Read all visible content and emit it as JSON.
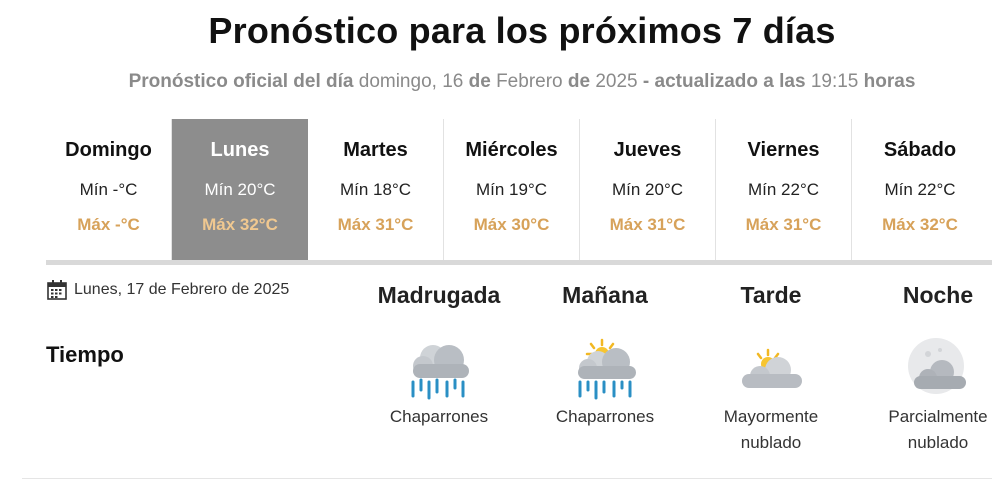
{
  "header": {
    "title": "Pronóstico para los próximos 7 días",
    "subtitle": {
      "prefix": "Pronóstico oficial del día",
      "weekday_day": "domingo, 16",
      "de1": "de",
      "month": "Febrero",
      "de2": "de",
      "year": "2025",
      "updated_label": "- actualizado a las",
      "time": "19:15",
      "hours_label": "horas"
    }
  },
  "days": [
    {
      "name": "Domingo",
      "min": "Mín -°C",
      "max": "Máx -°C",
      "active": false
    },
    {
      "name": "Lunes",
      "min": "Mín 20°C",
      "max": "Máx 32°C",
      "active": true
    },
    {
      "name": "Martes",
      "min": "Mín 18°C",
      "max": "Máx 31°C",
      "active": false
    },
    {
      "name": "Miércoles",
      "min": "Mín 19°C",
      "max": "Máx 30°C",
      "active": false
    },
    {
      "name": "Jueves",
      "min": "Mín 20°C",
      "max": "Máx 31°C",
      "active": false
    },
    {
      "name": "Viernes",
      "min": "Mín 22°C",
      "max": "Máx 31°C",
      "active": false
    },
    {
      "name": "Sábado",
      "min": "Mín 22°C",
      "max": "Máx 32°C",
      "active": false
    }
  ],
  "detail": {
    "date": "Lunes, 17 de Febrero de 2025",
    "date_icon": "calendar-icon",
    "section_label": "Tiempo",
    "periods": [
      {
        "name": "Madrugada",
        "desc_line1": "Chaparrones",
        "desc_line2": "",
        "icon": "rain-cloud-icon"
      },
      {
        "name": "Mañana",
        "desc_line1": "Chaparrones",
        "desc_line2": "",
        "icon": "sun-rain-cloud-icon"
      },
      {
        "name": "Tarde",
        "desc_line1": "Mayormente",
        "desc_line2": "nublado",
        "icon": "mostly-cloudy-icon"
      },
      {
        "name": "Noche",
        "desc_line1": "Parcialmente",
        "desc_line2": "nublado",
        "icon": "moon-cloud-icon"
      }
    ]
  },
  "colors": {
    "active_day_bg": "#8d8d8d",
    "max_temp": "#d7a25a",
    "subtitle_gray": "#8a8a8a",
    "rain_blue": "#2a8fc4"
  }
}
